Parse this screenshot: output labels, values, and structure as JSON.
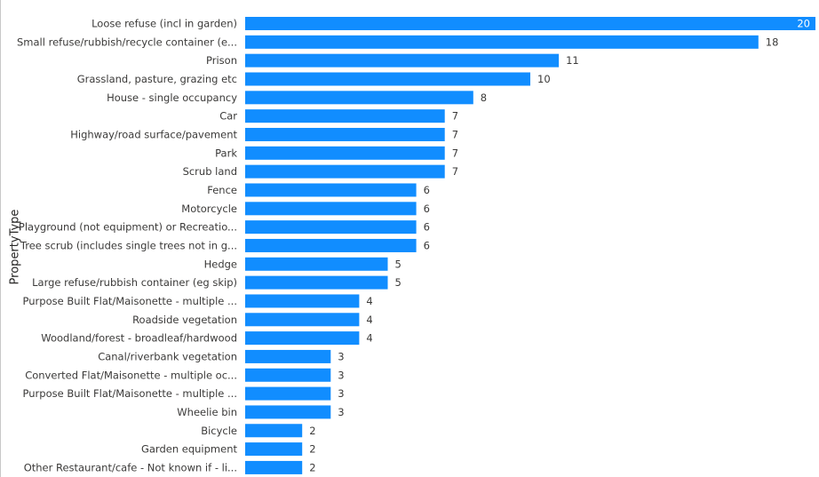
{
  "chart_data": {
    "type": "bar",
    "orientation": "horizontal",
    "ylabel": "PropertyType",
    "xlim": [
      0,
      20
    ],
    "grid": false,
    "bar_color": "#118DFF",
    "categories": [
      "Loose refuse (incl in garden)",
      "Small refuse/rubbish/recycle container (e...",
      "Prison",
      "Grassland, pasture, grazing etc",
      "House - single occupancy",
      "Car",
      "Highway/road surface/pavement",
      "Park",
      "Scrub land",
      "Fence",
      "Motorcycle",
      "Playground (not equipment) or Recreatio...",
      "Tree scrub (includes single trees not in g...",
      "Hedge",
      "Large refuse/rubbish container (eg skip)",
      "Purpose Built Flat/Maisonette - multiple ...",
      "Roadside vegetation",
      "Woodland/forest - broadleaf/hardwood",
      "Canal/riverbank vegetation",
      "Converted Flat/Maisonette - multiple oc...",
      "Purpose Built Flat/Maisonette - multiple ...",
      "Wheelie bin",
      "Bicycle",
      "Garden equipment",
      "Other Restaurant/cafe - Not known if - li..."
    ],
    "values": [
      20,
      18,
      11,
      10,
      8,
      7,
      7,
      7,
      7,
      6,
      6,
      6,
      6,
      5,
      5,
      4,
      4,
      4,
      3,
      3,
      3,
      3,
      2,
      2,
      2
    ]
  }
}
